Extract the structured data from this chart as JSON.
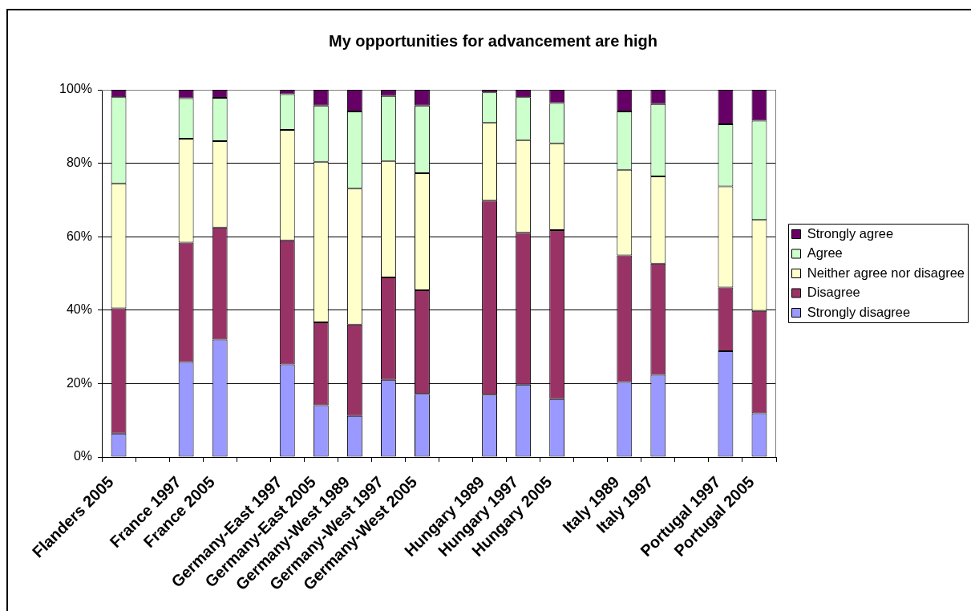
{
  "chart_data": {
    "type": "bar",
    "title": "My opportunities for advancement are high",
    "categories": [
      "Flanders 2005",
      null,
      "France 1997",
      "France 2005",
      null,
      "Germany-East 1997",
      "Germany-East 2005",
      "Germany-West 1989",
      "Germany-West 1997",
      "Germany-West 2005",
      null,
      "Hungary 1989",
      "Hungary 1997",
      "Hungary 2005",
      null,
      "Italy 1989",
      "Italy 1997",
      null,
      "Portugal 1997",
      "Portugal 2005"
    ],
    "stacked": true,
    "series": [
      {
        "name": "Strongly disagree",
        "color": "#9999ff",
        "values": [
          6.4,
          null,
          25.9,
          32.0,
          null,
          25.2,
          14.1,
          11.2,
          21.0,
          17.2,
          null,
          17.0,
          19.7,
          15.8,
          null,
          20.4,
          22.4,
          null,
          28.8,
          11.9
        ]
      },
      {
        "name": "Disagree",
        "color": "#993366",
        "values": [
          34.1,
          null,
          32.5,
          30.5,
          null,
          33.8,
          22.6,
          24.9,
          27.9,
          28.2,
          null,
          52.8,
          41.4,
          46.0,
          null,
          34.5,
          30.3,
          null,
          17.4,
          27.9
        ]
      },
      {
        "name": "Neither agree nor disagree",
        "color": "#ffffcc",
        "values": [
          34.0,
          null,
          28.3,
          23.5,
          null,
          30.1,
          43.7,
          37.0,
          31.7,
          31.9,
          null,
          21.2,
          25.2,
          23.6,
          null,
          23.3,
          23.7,
          null,
          27.5,
          24.8
        ]
      },
      {
        "name": "Agree",
        "color": "#ccffcc",
        "values": [
          23.5,
          null,
          11.0,
          11.8,
          null,
          9.7,
          15.3,
          21.0,
          17.7,
          18.4,
          null,
          8.3,
          11.7,
          11.0,
          null,
          15.9,
          19.7,
          null,
          16.9,
          27.0
        ]
      },
      {
        "name": "Strongly agree",
        "color": "#660066",
        "values": [
          2.0,
          null,
          2.3,
          2.2,
          null,
          1.2,
          4.3,
          5.9,
          1.7,
          4.3,
          null,
          0.7,
          2.0,
          3.6,
          null,
          5.9,
          3.9,
          null,
          9.4,
          8.4
        ]
      }
    ],
    "ylim": [
      0,
      100
    ],
    "yticks": [
      {
        "value": 0,
        "label": "0%"
      },
      {
        "value": 20,
        "label": "20%"
      },
      {
        "value": 40,
        "label": "40%"
      },
      {
        "value": 60,
        "label": "60%"
      },
      {
        "value": 80,
        "label": "80%"
      },
      {
        "value": 100,
        "label": "100%"
      }
    ],
    "grid": "y",
    "legend": "right"
  }
}
